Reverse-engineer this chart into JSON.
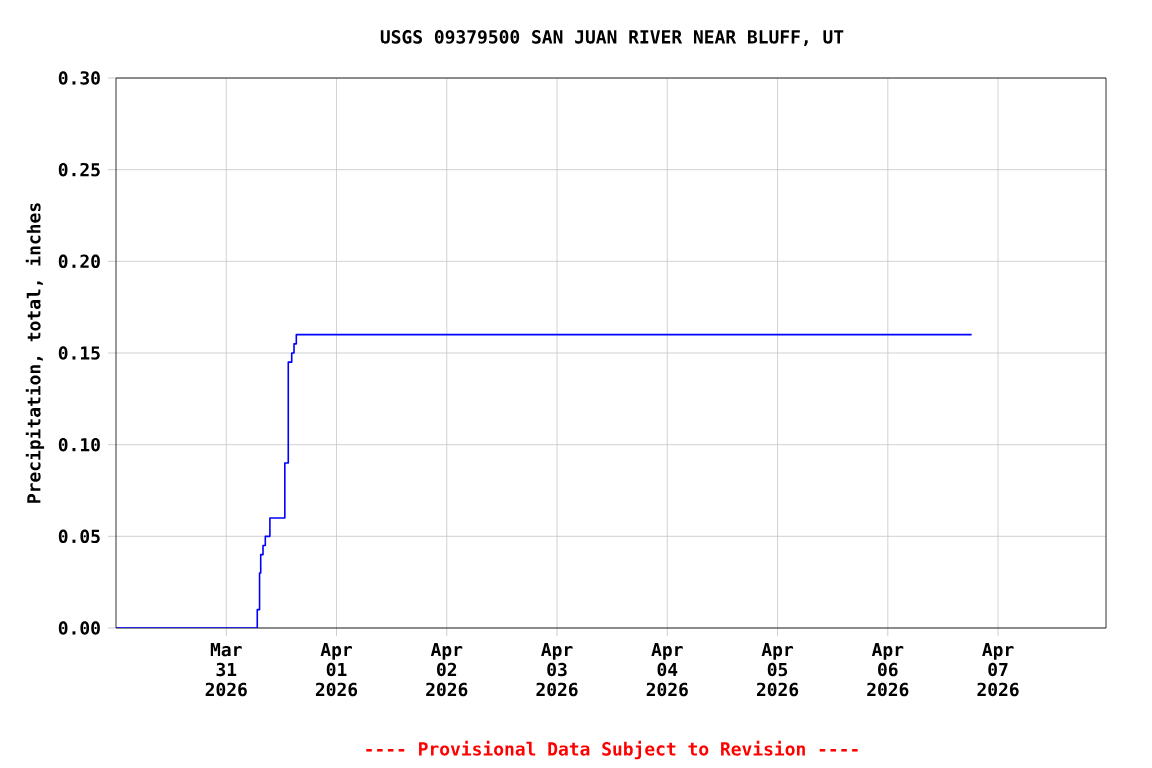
{
  "chart_data": {
    "type": "step",
    "title": "USGS 09379500 SAN JUAN RIVER NEAR BLUFF, UT",
    "ylabel": "Precipitation, total, inches",
    "annotations": [
      "---- Provisional Data Subject to Revision ----"
    ],
    "x": [
      "2026-03-30T00:00",
      "2026-03-31T06:45",
      "2026-03-31T07:15",
      "2026-03-31T07:30",
      "2026-03-31T08:00",
      "2026-03-31T08:30",
      "2026-03-31T09:30",
      "2026-03-31T12:45",
      "2026-03-31T13:30",
      "2026-03-31T14:15",
      "2026-03-31T14:45",
      "2026-03-31T15:15",
      "2026-04-06T18:15"
    ],
    "values": [
      0,
      0.01,
      0.03,
      0.04,
      0.045,
      0.05,
      0.06,
      0.09,
      0.145,
      0.15,
      0.155,
      0.16,
      0.16
    ],
    "color": "#0000ff",
    "xlim": [
      "2026-03-30T00:00",
      "2026-04-07T23:30"
    ],
    "ylim": [
      0,
      0.3
    ],
    "xticks": [
      {
        "value": "2026-03-31",
        "label": "Mar 31 2026"
      },
      {
        "value": "2026-04-01",
        "label": "Apr 01 2026"
      },
      {
        "value": "2026-04-02",
        "label": "Apr 02 2026"
      },
      {
        "value": "2026-04-03",
        "label": "Apr 03 2026"
      },
      {
        "value": "2026-04-04",
        "label": "Apr 04 2026"
      },
      {
        "value": "2026-04-05",
        "label": "Apr 05 2026"
      },
      {
        "value": "2026-04-06",
        "label": "Apr 06 2026"
      },
      {
        "value": "2026-04-07",
        "label": "Apr 07 2026"
      }
    ],
    "yticks": [
      {
        "value": 0,
        "label": "0.00"
      },
      {
        "value": 0.05,
        "label": "0.05"
      },
      {
        "value": 0.1,
        "label": "0.10"
      },
      {
        "value": 0.15,
        "label": "0.15"
      },
      {
        "value": 0.2,
        "label": "0.20"
      },
      {
        "value": 0.25,
        "label": "0.25"
      },
      {
        "value": 0.3,
        "label": "0.30"
      }
    ],
    "grid": true,
    "marker": "none",
    "line_style": "solid"
  }
}
